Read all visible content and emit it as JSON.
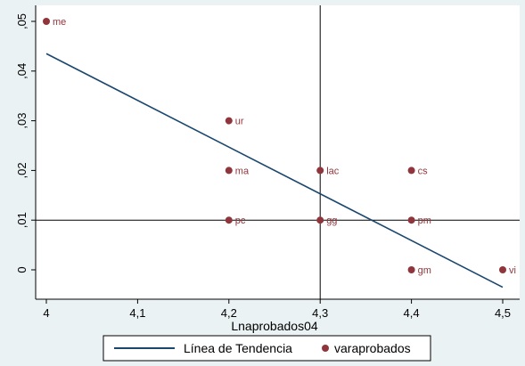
{
  "chart_data": {
    "type": "scatter",
    "xlabel": "Lnaprobados04",
    "ylabel": "",
    "xlim": [
      4.0,
      4.5
    ],
    "ylim": [
      0.0,
      0.05
    ],
    "x_ticks": [
      4.0,
      4.1,
      4.2,
      4.3,
      4.4,
      4.5
    ],
    "x_tick_labels": [
      "4",
      "4,1",
      "4,2",
      "4,3",
      "4,4",
      "4,5"
    ],
    "y_ticks": [
      0.0,
      0.01,
      0.02,
      0.03,
      0.04,
      0.05
    ],
    "y_tick_labels": [
      "0",
      ",01",
      ",02",
      ",03",
      ",04",
      ",05"
    ],
    "grid": false,
    "reference_lines": {
      "x": 4.3,
      "y": 0.01
    },
    "series": [
      {
        "name": "Línea de Tendencia",
        "kind": "line",
        "color": "#1a476f",
        "points": [
          [
            4.0,
            0.0435
          ],
          [
            4.5,
            -0.0035
          ]
        ]
      },
      {
        "name": "varaprobados",
        "kind": "scatter",
        "color": "#90353b",
        "points": [
          {
            "x": 4.0,
            "y": 0.05,
            "label": "me"
          },
          {
            "x": 4.2,
            "y": 0.03,
            "label": "ur"
          },
          {
            "x": 4.2,
            "y": 0.02,
            "label": "ma"
          },
          {
            "x": 4.3,
            "y": 0.02,
            "label": "lac"
          },
          {
            "x": 4.4,
            "y": 0.02,
            "label": "cs"
          },
          {
            "x": 4.2,
            "y": 0.01,
            "label": "pc"
          },
          {
            "x": 4.3,
            "y": 0.01,
            "label": "gg"
          },
          {
            "x": 4.4,
            "y": 0.01,
            "label": "pm"
          },
          {
            "x": 4.4,
            "y": 0.0,
            "label": "gm"
          },
          {
            "x": 4.5,
            "y": 0.0,
            "label": "vi"
          }
        ]
      }
    ],
    "legend_position": "bottom"
  }
}
